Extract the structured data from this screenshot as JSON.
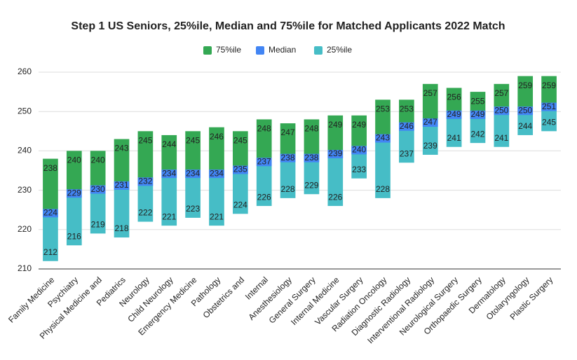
{
  "chart_data": {
    "type": "floating-bar",
    "title": "Step 1 US Seniors, 25%ile, Median and 75%ile for Matched Applicants 2022 Match",
    "categories": [
      "Family Medicine",
      "Psychiatry",
      "Physical Medicine and",
      "Pediatrics",
      "Neurology",
      "Child Neurology",
      "Emergency Medicine",
      "Pathology",
      "Obstetrics and",
      "Internal",
      "Anesthesiology",
      "General Surgery",
      "Internal Medicine",
      "Vascular Surgery",
      "Radiation Oncology",
      "Diagnostic Radiology",
      "Interventional Radiology",
      "Neurological Surgery",
      "Orthopaedic Surgery",
      "Dermatology",
      "Otolaryngology",
      "Plastic Surgery"
    ],
    "series": [
      {
        "name": "75%ile",
        "color": "#34a853",
        "values": [
          238,
          240,
          240,
          243,
          245,
          244,
          245,
          246,
          245,
          248,
          247,
          248,
          249,
          249,
          253,
          253,
          257,
          256,
          255,
          257,
          259,
          259
        ]
      },
      {
        "name": "Median",
        "color": "#4285f4",
        "values": [
          224,
          229,
          230,
          231,
          232,
          234,
          234,
          234,
          235,
          237,
          238,
          238,
          239,
          240,
          243,
          246,
          247,
          249,
          249,
          250,
          250,
          251
        ]
      },
      {
        "name": "25%ile",
        "color": "#46bdc6",
        "values": [
          212,
          216,
          219,
          218,
          222,
          221,
          223,
          221,
          224,
          226,
          228,
          229,
          226,
          233,
          228,
          237,
          239,
          241,
          242,
          241,
          244,
          245
        ]
      }
    ],
    "ylim": [
      210,
      260
    ],
    "yticks": [
      210,
      220,
      230,
      240,
      250,
      260
    ],
    "grid": true,
    "legend": "top"
  }
}
